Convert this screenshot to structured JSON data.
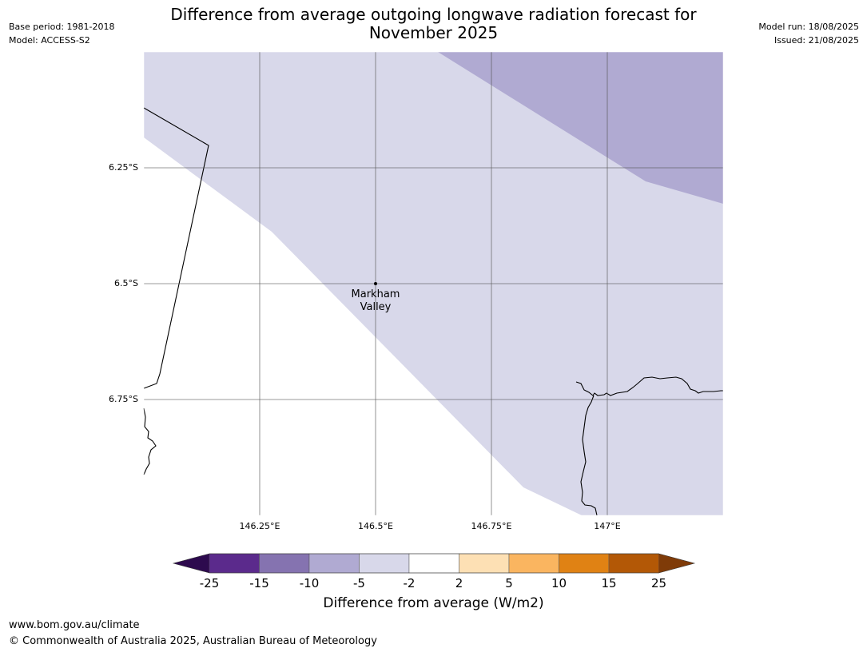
{
  "header": {
    "title_line1": "Difference from average outgoing longwave radiation forecast for",
    "title_line2": "November 2025",
    "base_period": "Base period: 1981-2018",
    "model": "Model: ACCESS-S2",
    "model_run": "Model run: 18/08/2025",
    "issued": "Issued: 21/08/2025"
  },
  "map": {
    "lat_ticks": [
      "6.25°S",
      "6.5°S",
      "6.75°S"
    ],
    "lon_ticks": [
      "146.25°E",
      "146.5°E",
      "146.75°E",
      "147°E"
    ],
    "location": {
      "name_line1": "Markham",
      "name_line2": "Valley"
    },
    "fill_colors": {
      "band_-5_-2": "#d8d8ea",
      "band_-10_-5": "#b0aad2"
    }
  },
  "colorbar": {
    "label": "Difference from average (W/m2)",
    "tick_labels": [
      "-25",
      "-15",
      "-10",
      "-5",
      "-2",
      "2",
      "5",
      "10",
      "15",
      "25"
    ],
    "colors": {
      "below_min": "#2d0a4e",
      "bins": [
        "#5b2a8c",
        "#8573b0",
        "#b0aad2",
        "#d8d8ea",
        "#ffffff",
        "#fde0b4",
        "#fab560",
        "#e08214",
        "#b35806"
      ],
      "above_max": "#7f3b08"
    }
  },
  "footer": {
    "url": "www.bom.gov.au/climate",
    "copyright": "© Commonwealth of Australia 2025, Australian Bureau of Meteorology"
  }
}
